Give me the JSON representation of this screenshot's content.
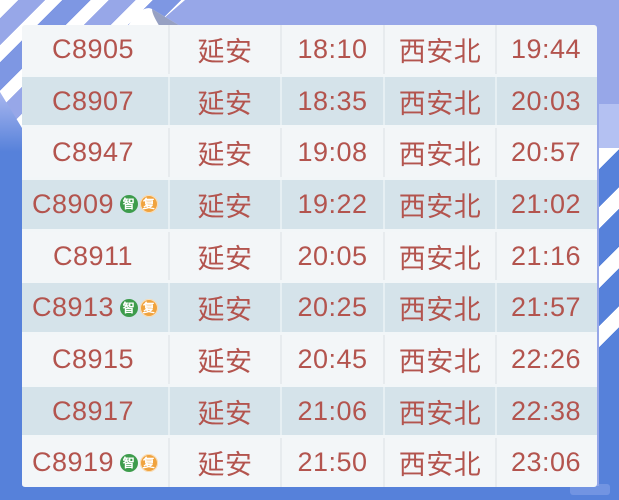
{
  "styles": {
    "background_color": "#97a7e8",
    "accent_blue": "#5681da",
    "row_light_color": "#f3f6f8",
    "row_dark_color": "#d5e3ea",
    "text_color": "#b3544e",
    "badge_smart_color": "#3d9c4c",
    "badge_fuxing_color": "#f0a33e"
  },
  "badges": {
    "smart_label": "智",
    "fuxing_label": "复"
  },
  "chart_data": {
    "type": "table",
    "rows": [
      {
        "train_no": "C8905",
        "badges": [],
        "from_station": "延安",
        "depart_time": "18:10",
        "to_station": "西安北",
        "arrive_time": "19:44"
      },
      {
        "train_no": "C8907",
        "badges": [],
        "from_station": "延安",
        "depart_time": "18:35",
        "to_station": "西安北",
        "arrive_time": "20:03"
      },
      {
        "train_no": "C8947",
        "badges": [],
        "from_station": "延安",
        "depart_time": "19:08",
        "to_station": "西安北",
        "arrive_time": "20:57"
      },
      {
        "train_no": "C8909",
        "badges": [
          "智",
          "复"
        ],
        "from_station": "延安",
        "depart_time": "19:22",
        "to_station": "西安北",
        "arrive_time": "21:02"
      },
      {
        "train_no": "C8911",
        "badges": [],
        "from_station": "延安",
        "depart_time": "20:05",
        "to_station": "西安北",
        "arrive_time": "21:16"
      },
      {
        "train_no": "C8913",
        "badges": [
          "智",
          "复"
        ],
        "from_station": "延安",
        "depart_time": "20:25",
        "to_station": "西安北",
        "arrive_time": "21:57"
      },
      {
        "train_no": "C8915",
        "badges": [],
        "from_station": "延安",
        "depart_time": "20:45",
        "to_station": "西安北",
        "arrive_time": "22:26"
      },
      {
        "train_no": "C8917",
        "badges": [],
        "from_station": "延安",
        "depart_time": "21:06",
        "to_station": "西安北",
        "arrive_time": "22:38"
      },
      {
        "train_no": "C8919",
        "badges": [
          "智",
          "复"
        ],
        "from_station": "延安",
        "depart_time": "21:50",
        "to_station": "西安北",
        "arrive_time": "23:06"
      }
    ]
  }
}
